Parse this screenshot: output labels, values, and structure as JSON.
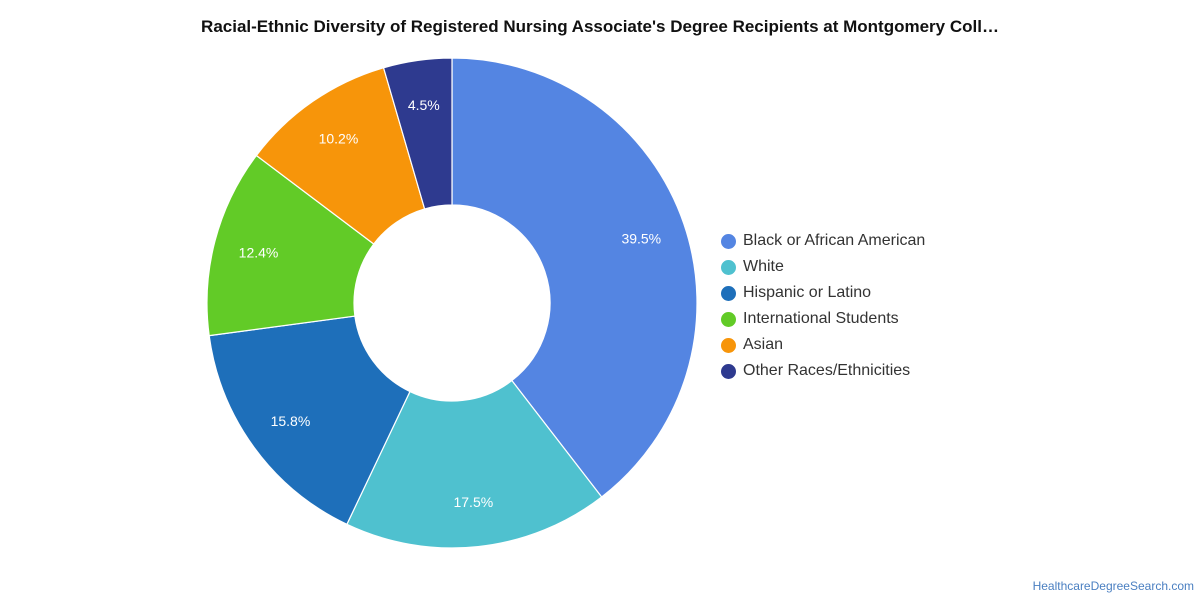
{
  "chart_data": {
    "type": "pie",
    "title": "Racial-Ethnic Diversity of Registered Nursing Associate's Degree Recipients at Montgomery Coll…",
    "categories": [
      "Black or African American",
      "White",
      "Hispanic or Latino",
      "International Students",
      "Asian",
      "Other Races/Ethnicities"
    ],
    "values": [
      39.5,
      17.5,
      15.8,
      12.4,
      10.2,
      4.5
    ],
    "value_labels": [
      "39.5%",
      "17.5%",
      "15.8%",
      "12.4%",
      "10.2%",
      "4.5%"
    ],
    "colors": [
      "#5485e2",
      "#4fc1cf",
      "#1e6fba",
      "#62cb27",
      "#f7950a",
      "#2e3a8f"
    ],
    "donut": true,
    "legend_position": "right"
  },
  "source": "HealthcareDegreeSearch.com"
}
